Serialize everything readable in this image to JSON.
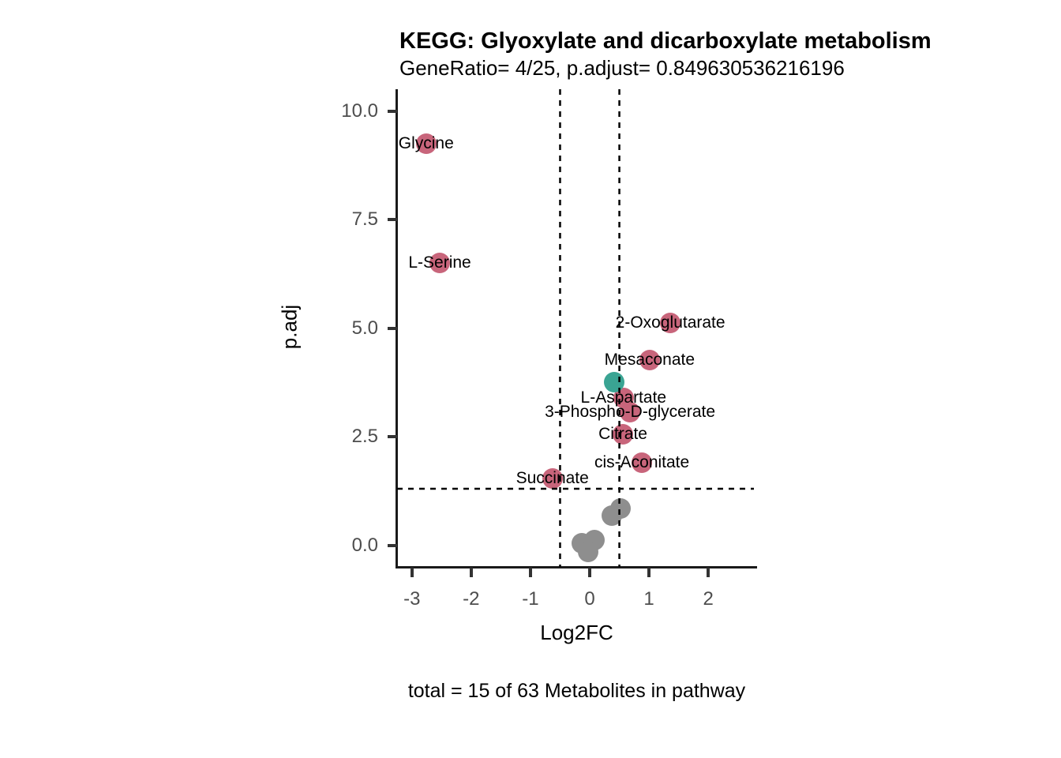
{
  "title": "KEGG: Glyoxylate and dicarboxylate metabolism",
  "subtitle": "GeneRatio= 4/25, p.adjust= 0.849630536216196",
  "caption": "total = 15 of 63 Metabolites in pathway",
  "colors": {
    "rose": "#C8657B",
    "teal": "#3AA493",
    "gray": "#8E8E8E",
    "axis_line": "#1A1A1A",
    "tick_mark": "#333333",
    "tick_text": "#4D4D4D",
    "threshold_line": "#000000",
    "background": "#FFFFFF"
  },
  "chart_data": {
    "type": "scatter",
    "title": "KEGG: Glyoxylate and dicarboxylate metabolism",
    "subtitle": "GeneRatio= 4/25, p.adjust= 0.849630536216196",
    "caption": "total = 15 of 63 Metabolites in pathway",
    "xlabel": "Log2FC",
    "ylabel": "p.adj",
    "xlim": [
      -3.25,
      2.81
    ],
    "ylim": [
      -0.5,
      10.51
    ],
    "grid": false,
    "legend": false,
    "x_ticks": [
      {
        "value": -3,
        "label": "-3"
      },
      {
        "value": -2,
        "label": "-2"
      },
      {
        "value": -1,
        "label": "-1"
      },
      {
        "value": 0,
        "label": "0"
      },
      {
        "value": 1,
        "label": "1"
      },
      {
        "value": 2,
        "label": "2"
      }
    ],
    "y_ticks": [
      {
        "value": 0,
        "label": "0.0"
      },
      {
        "value": 2.5,
        "label": "2.5"
      },
      {
        "value": 5,
        "label": "5.0"
      },
      {
        "value": 7.5,
        "label": "7.5"
      },
      {
        "value": 10,
        "label": "10.0"
      }
    ],
    "thresholds": {
      "vlines": [
        -0.5,
        0.5
      ],
      "hline": 1.301,
      "line_style": "dashed",
      "color": "#000000"
    },
    "series": [
      {
        "name": "rose",
        "color": "#C8657B",
        "points": [
          {
            "label": "Glycine",
            "x": -2.76,
            "y": 9.25
          },
          {
            "label": "L-Serine",
            "x": -2.53,
            "y": 6.51
          },
          {
            "label": "2-Oxoglutarate",
            "x": 1.36,
            "y": 5.13
          },
          {
            "label": "Mesaconate",
            "x": 1.01,
            "y": 4.26
          },
          {
            "label": "L-Aspartate",
            "x": 0.57,
            "y": 3.4
          },
          {
            "label": "3-Phospho-D-glycerate",
            "x": 0.68,
            "y": 3.06
          },
          {
            "label": "Citrate",
            "x": 0.56,
            "y": 2.55
          },
          {
            "label": "cis-Aconitate",
            "x": 0.88,
            "y": 1.91
          },
          {
            "label": "Succinate",
            "x": -0.63,
            "y": 1.53
          }
        ]
      },
      {
        "name": "teal",
        "color": "#3AA493",
        "points": [
          {
            "label": "",
            "x": 0.41,
            "y": 3.75
          }
        ]
      },
      {
        "name": "gray",
        "color": "#8E8E8E",
        "points": [
          {
            "label": "",
            "x": 0.52,
            "y": 0.85
          },
          {
            "label": "",
            "x": 0.37,
            "y": 0.69
          },
          {
            "label": "",
            "x": 0.08,
            "y": 0.12
          },
          {
            "label": "",
            "x": -0.13,
            "y": 0.05
          },
          {
            "label": "",
            "x": -0.03,
            "y": -0.15
          }
        ]
      }
    ]
  }
}
